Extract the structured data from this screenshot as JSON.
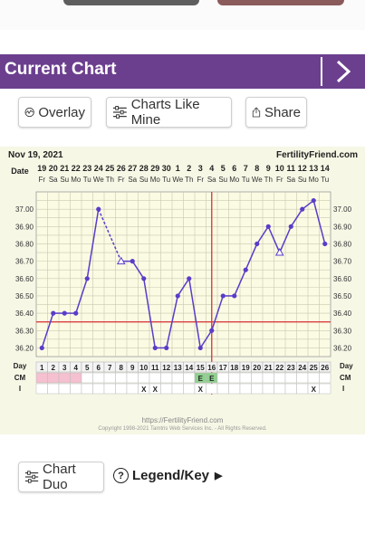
{
  "header": {
    "title": "Current Chart"
  },
  "toolbar": {
    "overlay_label": "Overlay",
    "charts_like_mine_label": "Charts Like Mine",
    "share_label": "Share"
  },
  "chart_header": {
    "date": "Nov 19, 2021",
    "site": "FertilityFriend.com"
  },
  "footer": {
    "url": "https://FertilityFriend.com",
    "copyright": "Copyright 1998-2021 Tamtris Web Services Inc. - All Rights Reserved."
  },
  "bottom": {
    "chart_duo_label": "Chart Duo",
    "legend_label": "Legend/Key"
  },
  "colors": {
    "header_bg": "#6b3f8e",
    "line": "#5a3cc8",
    "coverline": "#d94040",
    "ovulation": "#d94040",
    "menses": "#f5c0d0",
    "cm_e": "#8fd08f"
  },
  "chart_data": {
    "type": "line",
    "date_row_label": "Date",
    "dates": [
      "19",
      "20",
      "21",
      "22",
      "23",
      "24",
      "25",
      "26",
      "27",
      "28",
      "29",
      "30",
      "1",
      "2",
      "3",
      "4",
      "5",
      "6",
      "7",
      "8",
      "9",
      "10",
      "11",
      "12",
      "13",
      "14"
    ],
    "weekdays": [
      "Fr",
      "Sa",
      "Su",
      "Mo",
      "Tu",
      "We",
      "Th",
      "Fr",
      "Sa",
      "Su",
      "Mo",
      "Tu",
      "We",
      "Th",
      "Fr",
      "Sa",
      "Su",
      "Mo",
      "Tu",
      "We",
      "Th",
      "Fr",
      "Sa",
      "Su",
      "Mo",
      "Tu"
    ],
    "days": [
      "1",
      "2",
      "3",
      "4",
      "5",
      "6",
      "7",
      "8",
      "9",
      "10",
      "11",
      "12",
      "13",
      "14",
      "15",
      "16",
      "17",
      "18",
      "19",
      "20",
      "21",
      "22",
      "23",
      "24",
      "25",
      "26"
    ],
    "day_row_label": "Day",
    "cm_row_label": "CM",
    "i_row_label": "I",
    "y_ticks": [
      "37.00",
      "36.90",
      "36.80",
      "36.70",
      "36.60",
      "36.50",
      "36.40",
      "36.30",
      "36.20"
    ],
    "ylim": [
      36.15,
      37.1
    ],
    "temps": [
      36.2,
      36.4,
      36.4,
      36.4,
      36.6,
      37.0,
      null,
      36.7,
      36.7,
      36.6,
      36.2,
      36.2,
      36.5,
      36.6,
      36.2,
      36.3,
      36.5,
      36.5,
      36.65,
      36.8,
      36.9,
      36.75,
      36.9,
      37.0,
      37.05,
      36.8
    ],
    "open_points": [
      8,
      22
    ],
    "dashed_segment": [
      5,
      7
    ],
    "coverline": 36.35,
    "ovulation_day": 16,
    "menses_days": [
      1,
      2,
      3,
      4
    ],
    "cm": {
      "15": "E",
      "16": "E"
    },
    "intercourse": {
      "10": "X",
      "11": "X",
      "15": "X",
      "25": "X"
    }
  }
}
